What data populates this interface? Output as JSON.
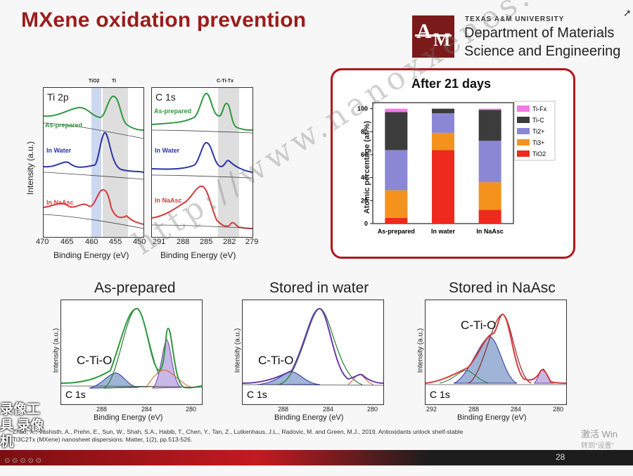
{
  "slide": {
    "title": "MXene oxidation prevention",
    "university": "TEXAS A&M UNIVERSITY",
    "dept_line1": "Department of Materials",
    "dept_line2": "Science and Engineering",
    "logo_letters": {
      "a": "A",
      "m": "M"
    },
    "citation_line1": "Zhao, X., Vashisth, A., Prehn, E., Sun, W., Shah, S.A., Habib, T., Chen, Y., Tan, Z., Lutkenhaus, J.L., Radovic, M. and Green, M.J., 2019. Antioxidants unlock shelf-stable",
    "citation_line2": "Ti3C2Tx (MXene) nanosheet dispersions. Matter, 1(2), pp.513-526.",
    "page_number": "28",
    "watermark": "http://www.nanoxxenes.com",
    "windows_activate": "激活 Win",
    "windows_settings": "转到\"设置\"",
    "overlay_text": "录像工具 录像机",
    "accent_color": "#9b1c1c"
  },
  "xps_ti2p": {
    "panel_label": "Ti 2p",
    "labels": [
      "As-prepared",
      "In Water",
      "In NaAsc"
    ],
    "label_colors": [
      "#2e9a3e",
      "#2a35a8",
      "#d43b3b"
    ],
    "top_labels": [
      "TiO2",
      "Ti"
    ],
    "xticks": [
      "470",
      "465",
      "460",
      "455",
      "450"
    ],
    "ylabel": "Intensity (a.u.)",
    "xlabel": "Binding Energy (eV)"
  },
  "xps_c1s": {
    "panel_label": "C 1s",
    "labels": [
      "As-prepared",
      "In Water",
      "In NaAsc"
    ],
    "top_label": "C-Ti-Tx",
    "xticks": [
      "291",
      "288",
      "285",
      "282",
      "279"
    ],
    "xlabel": "Binding Energy (eV)"
  },
  "chart_data": {
    "type": "bar",
    "title": "After 21 days",
    "categories": [
      "As-prepared",
      "In water",
      "In NaAsc"
    ],
    "ylabel": "Atomic percentage (at.%)",
    "ylim": [
      0,
      100
    ],
    "yticks": [
      "0",
      "20",
      "40",
      "60",
      "80",
      "100"
    ],
    "stacked": true,
    "series": [
      {
        "name": "TiO2",
        "color": "#ee2a1e",
        "values": [
          5,
          64,
          12
        ]
      },
      {
        "name": "Ti3+",
        "color": "#f5921e",
        "values": [
          24,
          15,
          24
        ]
      },
      {
        "name": "Ti2+",
        "color": "#8c87d4",
        "values": [
          35,
          17,
          36
        ]
      },
      {
        "name": "Ti-C",
        "color": "#3c3c3c",
        "values": [
          33,
          4,
          27
        ]
      },
      {
        "name": "Ti-Fx",
        "color": "#f27ae8",
        "values": [
          3,
          0,
          1
        ]
      }
    ],
    "legend": "top-right"
  },
  "c1s_fits": [
    {
      "heading": "As-prepared",
      "annotation": "C-Ti-O",
      "corner": "C 1s",
      "xticks": [
        "288",
        "284",
        "280"
      ],
      "xlabel": "Binding Energy (eV)",
      "ylabel": "Intensity (a.u.)"
    },
    {
      "heading": "Stored in water",
      "annotation": "C-Ti-O",
      "corner": "C 1s",
      "xticks": [
        "288",
        "284",
        "280"
      ],
      "xlabel": "Binding Energy (eV)",
      "ylabel": "Intensity (a.u.)"
    },
    {
      "heading": "Stored in NaAsc",
      "annotation": "C-Ti-O",
      "corner": "C 1s",
      "xticks": [
        "292",
        "288",
        "284",
        "280"
      ],
      "xlabel": "Binding Energy (eV)",
      "ylabel": "Intensity (a.u.)"
    }
  ]
}
